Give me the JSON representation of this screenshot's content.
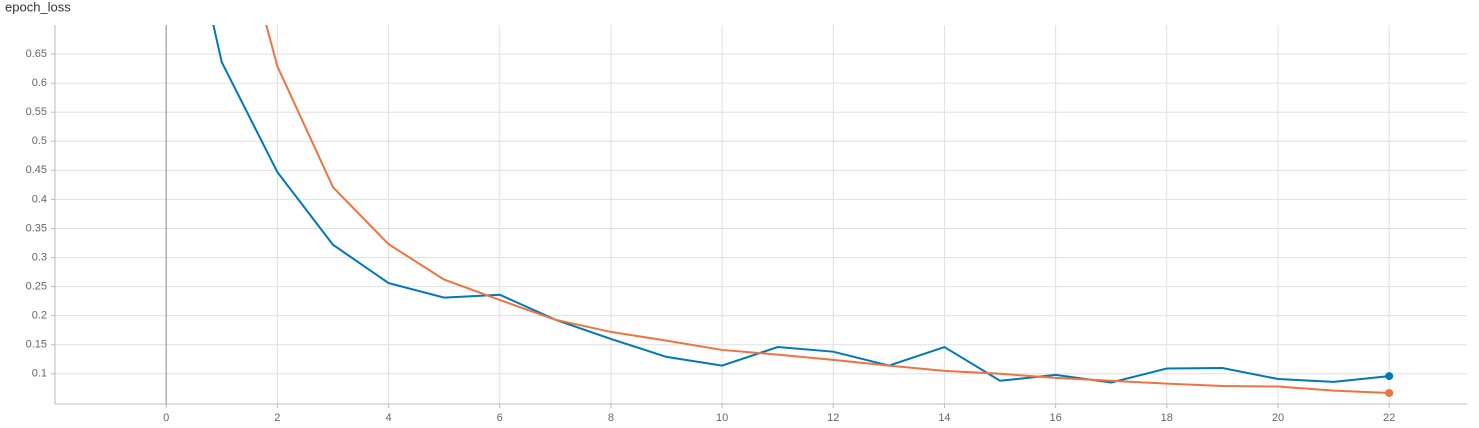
{
  "chart_data": {
    "type": "line",
    "title": "epoch_loss",
    "x": [
      0,
      1,
      2,
      3,
      4,
      5,
      6,
      7,
      8,
      9,
      10,
      11,
      12,
      13,
      14,
      15,
      16,
      17,
      18,
      19,
      20,
      21,
      22
    ],
    "series": [
      {
        "color": "#0077bb",
        "values": [
          1.06,
          0.636,
          0.447,
          0.322,
          0.256,
          0.231,
          0.236,
          0.193,
          0.16,
          0.129,
          0.114,
          0.146,
          0.138,
          0.114,
          0.146,
          0.088,
          0.098,
          0.085,
          0.109,
          0.11,
          0.091,
          0.086,
          0.096
        ]
      },
      {
        "color": "#f0733f",
        "values": [
          null,
          0.984,
          0.629,
          0.421,
          0.323,
          0.262,
          0.227,
          0.193,
          0.172,
          0.157,
          0.141,
          0.133,
          0.124,
          0.114,
          0.105,
          0.1,
          0.093,
          0.088,
          0.083,
          0.079,
          0.078,
          0.071,
          0.067
        ]
      }
    ],
    "xlim": [
      -2,
      23.4
    ],
    "xticks": [
      0,
      2,
      4,
      6,
      8,
      10,
      12,
      14,
      16,
      18,
      20,
      22
    ],
    "ylim": [
      0.048,
      0.7
    ],
    "yticks": [
      0.1,
      0.15,
      0.2,
      0.25,
      0.3,
      0.35,
      0.4,
      0.45,
      0.5,
      0.55,
      0.6,
      0.65
    ],
    "grid": true
  }
}
